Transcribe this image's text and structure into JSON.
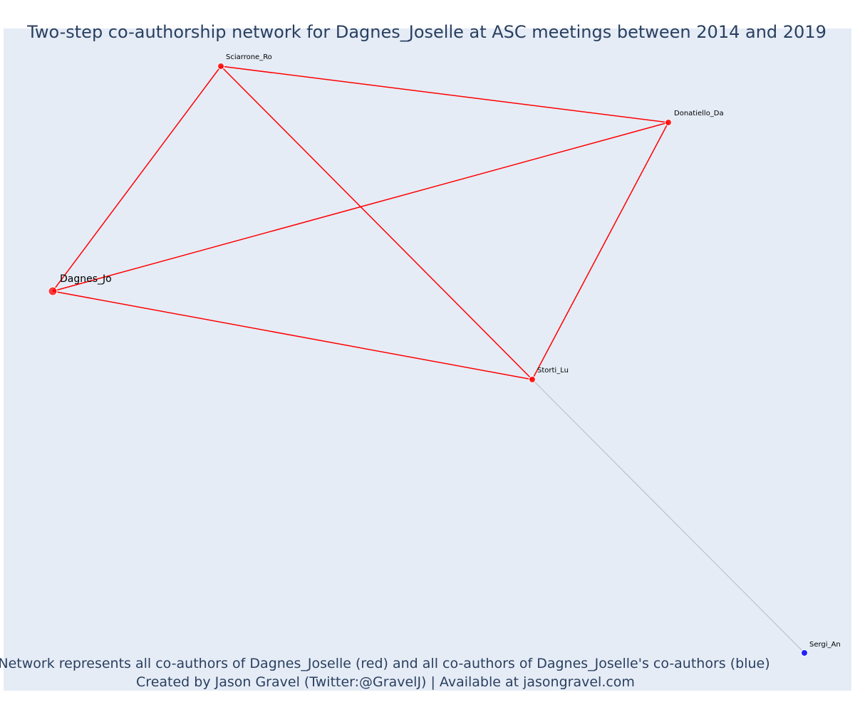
{
  "title": "Two-step co-authorship network for Dagnes_Joselle at ASC meetings between 2014 and 2019",
  "caption": {
    "line1": "Network represents all co-authors of Dagnes_Joselle (red) and all co-authors of Dagnes_Joselle's co-authors (blue)",
    "line2": "Created by Jason Gravel (Twitter:@GravelJ) | Available at jasongravel.com"
  },
  "colors": {
    "plot_background": "#e5ecf6",
    "first_degree": "#ff0000",
    "second_degree": "#0000ff",
    "second_degree_edge": "#b8b8c8",
    "node_outline": "#ffffff"
  },
  "nodes": [
    {
      "id": "dagnes",
      "label": "Dagnes_Jo",
      "group": "focal"
    },
    {
      "id": "sciarrone",
      "label": "Sciarrone_Ro",
      "group": "first"
    },
    {
      "id": "donatiello",
      "label": "Donatiello_Da",
      "group": "first"
    },
    {
      "id": "storti",
      "label": "Storti_Lu",
      "group": "first"
    },
    {
      "id": "sergi",
      "label": "Sergi_An",
      "group": "second"
    }
  ],
  "edges": [
    {
      "source": "dagnes",
      "target": "sciarrone",
      "group": "first"
    },
    {
      "source": "dagnes",
      "target": "donatiello",
      "group": "first"
    },
    {
      "source": "dagnes",
      "target": "storti",
      "group": "first"
    },
    {
      "source": "sciarrone",
      "target": "donatiello",
      "group": "first"
    },
    {
      "source": "sciarrone",
      "target": "storti",
      "group": "first"
    },
    {
      "source": "donatiello",
      "target": "storti",
      "group": "first"
    },
    {
      "source": "storti",
      "target": "sergi",
      "group": "second"
    }
  ]
}
